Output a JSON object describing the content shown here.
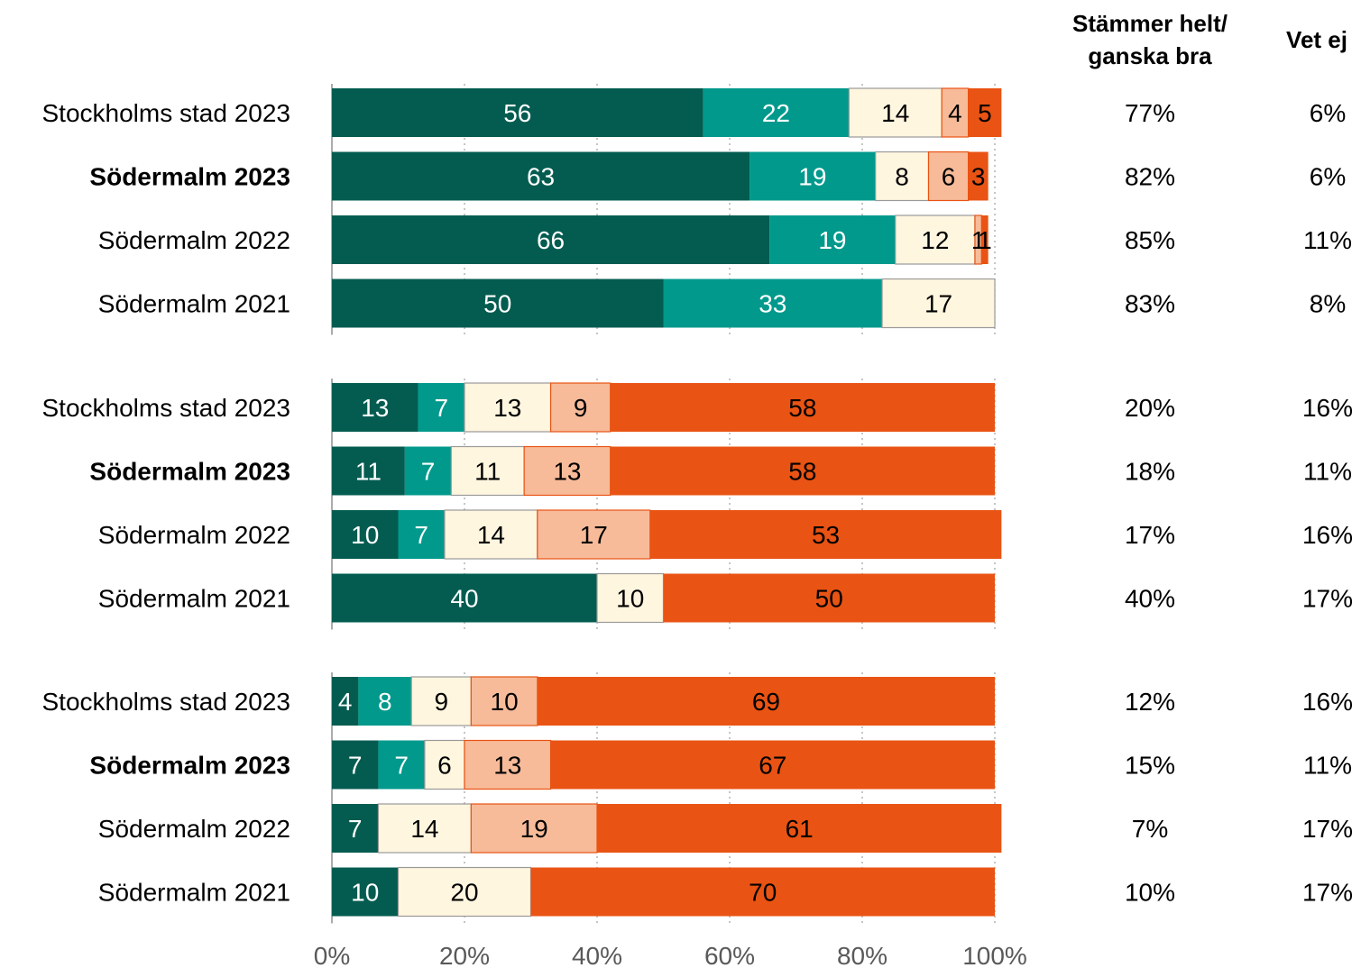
{
  "colors": {
    "dark_green": "#045C50",
    "teal": "#00998C",
    "cream": "#FFF6DF",
    "light_orange": "#F7BB99",
    "orange": "#E95313",
    "grid": "#A6A6A6"
  },
  "headers": {
    "agree_line1": "Stämmer helt/",
    "agree_line2": "ganska bra",
    "dont_know": "Vet ej"
  },
  "chart_data": {
    "type": "bar",
    "orientation": "horizontal-stacked-100",
    "xlim": [
      0,
      100
    ],
    "x_ticks": [
      "0%",
      "20%",
      "40%",
      "60%",
      "80%",
      "100%"
    ],
    "grid": true,
    "series_colors": [
      "#045C50",
      "#00998C",
      "#FFF6DF",
      "#F7BB99",
      "#E95313"
    ],
    "groups": [
      {
        "rows": [
          {
            "label": "Stockholms stad 2023",
            "bold": false,
            "values": [
              56,
              22,
              14,
              4,
              5
            ],
            "agree": "77%",
            "dont_know": "6%"
          },
          {
            "label": "Södermalm 2023",
            "bold": true,
            "values": [
              63,
              19,
              8,
              6,
              3
            ],
            "agree": "82%",
            "dont_know": "6%"
          },
          {
            "label": "Södermalm 2022",
            "bold": false,
            "values": [
              66,
              19,
              12,
              1,
              1
            ],
            "agree": "85%",
            "dont_know": "11%"
          },
          {
            "label": "Södermalm 2021",
            "bold": false,
            "values": [
              50,
              33,
              17,
              0,
              0
            ],
            "agree": "83%",
            "dont_know": "8%"
          }
        ]
      },
      {
        "rows": [
          {
            "label": "Stockholms stad 2023",
            "bold": false,
            "values": [
              13,
              7,
              13,
              9,
              58
            ],
            "agree": "20%",
            "dont_know": "16%"
          },
          {
            "label": "Södermalm 2023",
            "bold": true,
            "values": [
              11,
              7,
              11,
              13,
              58
            ],
            "agree": "18%",
            "dont_know": "11%"
          },
          {
            "label": "Södermalm 2022",
            "bold": false,
            "values": [
              10,
              7,
              14,
              17,
              53
            ],
            "agree": "17%",
            "dont_know": "16%"
          },
          {
            "label": "Södermalm 2021",
            "bold": false,
            "values": [
              40,
              0,
              10,
              0,
              50
            ],
            "agree": "40%",
            "dont_know": "17%"
          }
        ]
      },
      {
        "rows": [
          {
            "label": "Stockholms stad 2023",
            "bold": false,
            "values": [
              4,
              8,
              9,
              10,
              69
            ],
            "agree": "12%",
            "dont_know": "16%"
          },
          {
            "label": "Södermalm 2023",
            "bold": true,
            "values": [
              7,
              7,
              6,
              13,
              67
            ],
            "agree": "15%",
            "dont_know": "11%"
          },
          {
            "label": "Södermalm 2022",
            "bold": false,
            "values": [
              7,
              0,
              14,
              19,
              61
            ],
            "agree": "7%",
            "dont_know": "17%"
          },
          {
            "label": "Södermalm 2021",
            "bold": false,
            "values": [
              10,
              0,
              20,
              0,
              70
            ],
            "agree": "10%",
            "dont_know": "17%"
          }
        ]
      }
    ]
  }
}
